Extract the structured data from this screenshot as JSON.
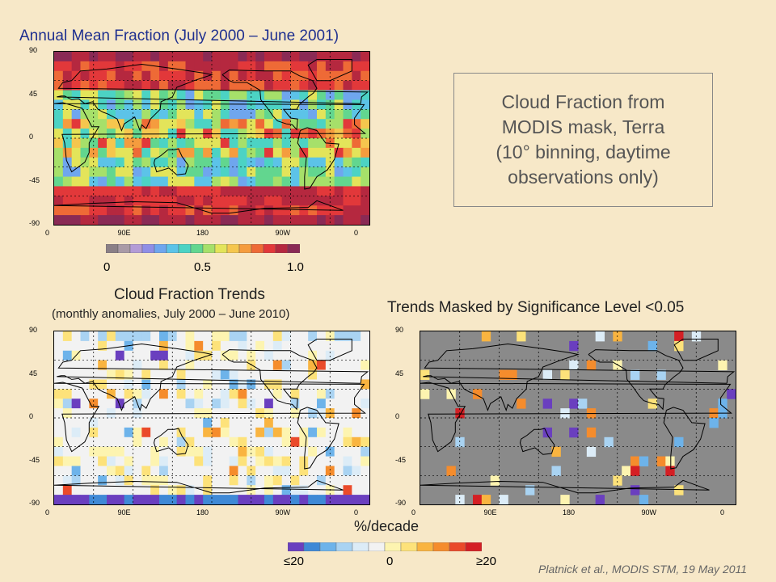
{
  "annual": {
    "title": "Annual Mean Fraction (July  2000 – June 2001)",
    "y_ticks": [
      "90",
      "45",
      "0",
      "-45",
      "-90"
    ],
    "x_ticks": [
      "0",
      "90E",
      "180",
      "90W",
      "0"
    ],
    "colorbar_labels": [
      "0",
      "0.5",
      "1.0"
    ]
  },
  "infobox": {
    "lines": [
      "Cloud Fraction from",
      "MODIS mask, Terra",
      "(10° binning, daytime",
      "observations only)"
    ]
  },
  "trends": {
    "title": "Cloud Fraction Trends",
    "subtitle": "(monthly anomalies, July  2000 – June 2010)",
    "y_ticks": [
      "90",
      "45",
      "0",
      "-45",
      "-90"
    ],
    "x_ticks": [
      "0",
      "90E",
      "180",
      "90W",
      "0"
    ]
  },
  "masked": {
    "title": "Trends Masked by Significance Level <0.05",
    "y_ticks": [
      "90",
      "45",
      "0",
      "-45",
      "-90"
    ],
    "x_ticks": [
      "0",
      "90E",
      "180",
      "90W",
      "0"
    ]
  },
  "trend_colorbar": {
    "unit": "%/decade",
    "labels": [
      "≤20",
      "0",
      "≥20"
    ]
  },
  "footer": "Platnick et al., MODIS STM, 19 May 2011",
  "colors": {
    "background": "#f7e8c8",
    "title_blue": "#1e2f8f",
    "annual_scale": [
      "#8a7f86",
      "#a99aa6",
      "#b39bd6",
      "#8f8ee6",
      "#6fa6ee",
      "#5cc3e8",
      "#4cd3c4",
      "#62d68f",
      "#a6e06a",
      "#e3e45a",
      "#f5c64e",
      "#f59c3e",
      "#ee6a36",
      "#e2383a",
      "#b5283f",
      "#8a2a55"
    ],
    "trend_scale": [
      "#6a3fbf",
      "#3f89d6",
      "#6db3ea",
      "#a9d3f2",
      "#dcecf7",
      "#f2f2f2",
      "#fdf4b0",
      "#fde27a",
      "#f9b440",
      "#f58c2c",
      "#ea4a2a",
      "#d41f24"
    ],
    "masked_gray": "#8a8a8a"
  }
}
